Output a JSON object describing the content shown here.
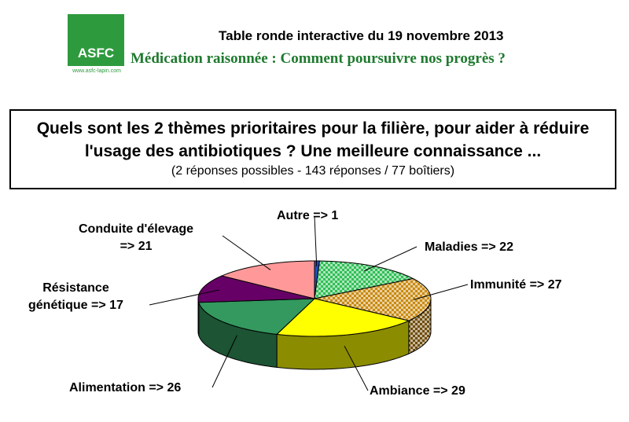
{
  "header": {
    "logo": "ASFC",
    "url": "www.asfc-lapin.com",
    "event": "Table ronde interactive du 19 novembre 2013",
    "subtitle": "Médication raisonnée : Comment poursuivre nos progrès ?"
  },
  "chart_data": {
    "type": "pie3d",
    "title": "Quels sont les 2 thèmes prioritaires pour la filière, pour aider à réduire l'usage des antibiotiques ? Une meilleure connaissance ...",
    "subtitle": "(2 réponses possibles - 143 réponses / 77 boîtiers)",
    "values": [
      1,
      22,
      27,
      29,
      26,
      17,
      21
    ],
    "value_labels": [
      "Autre => 1",
      "Maladies => 22",
      "Immunité => 27",
      "Ambiance => 29",
      "Alimentation => 26",
      "Résistance\ngénétique => 17",
      "Conduite d'élevage\n=> 21"
    ],
    "colors": [
      "#1f4fbf",
      "#2fbf55",
      "#c98a10",
      "#ffff00",
      "#33995f",
      "#660066",
      "#ff9999"
    ],
    "patterns": [
      null,
      "checker",
      "checker",
      null,
      null,
      null,
      null
    ]
  }
}
